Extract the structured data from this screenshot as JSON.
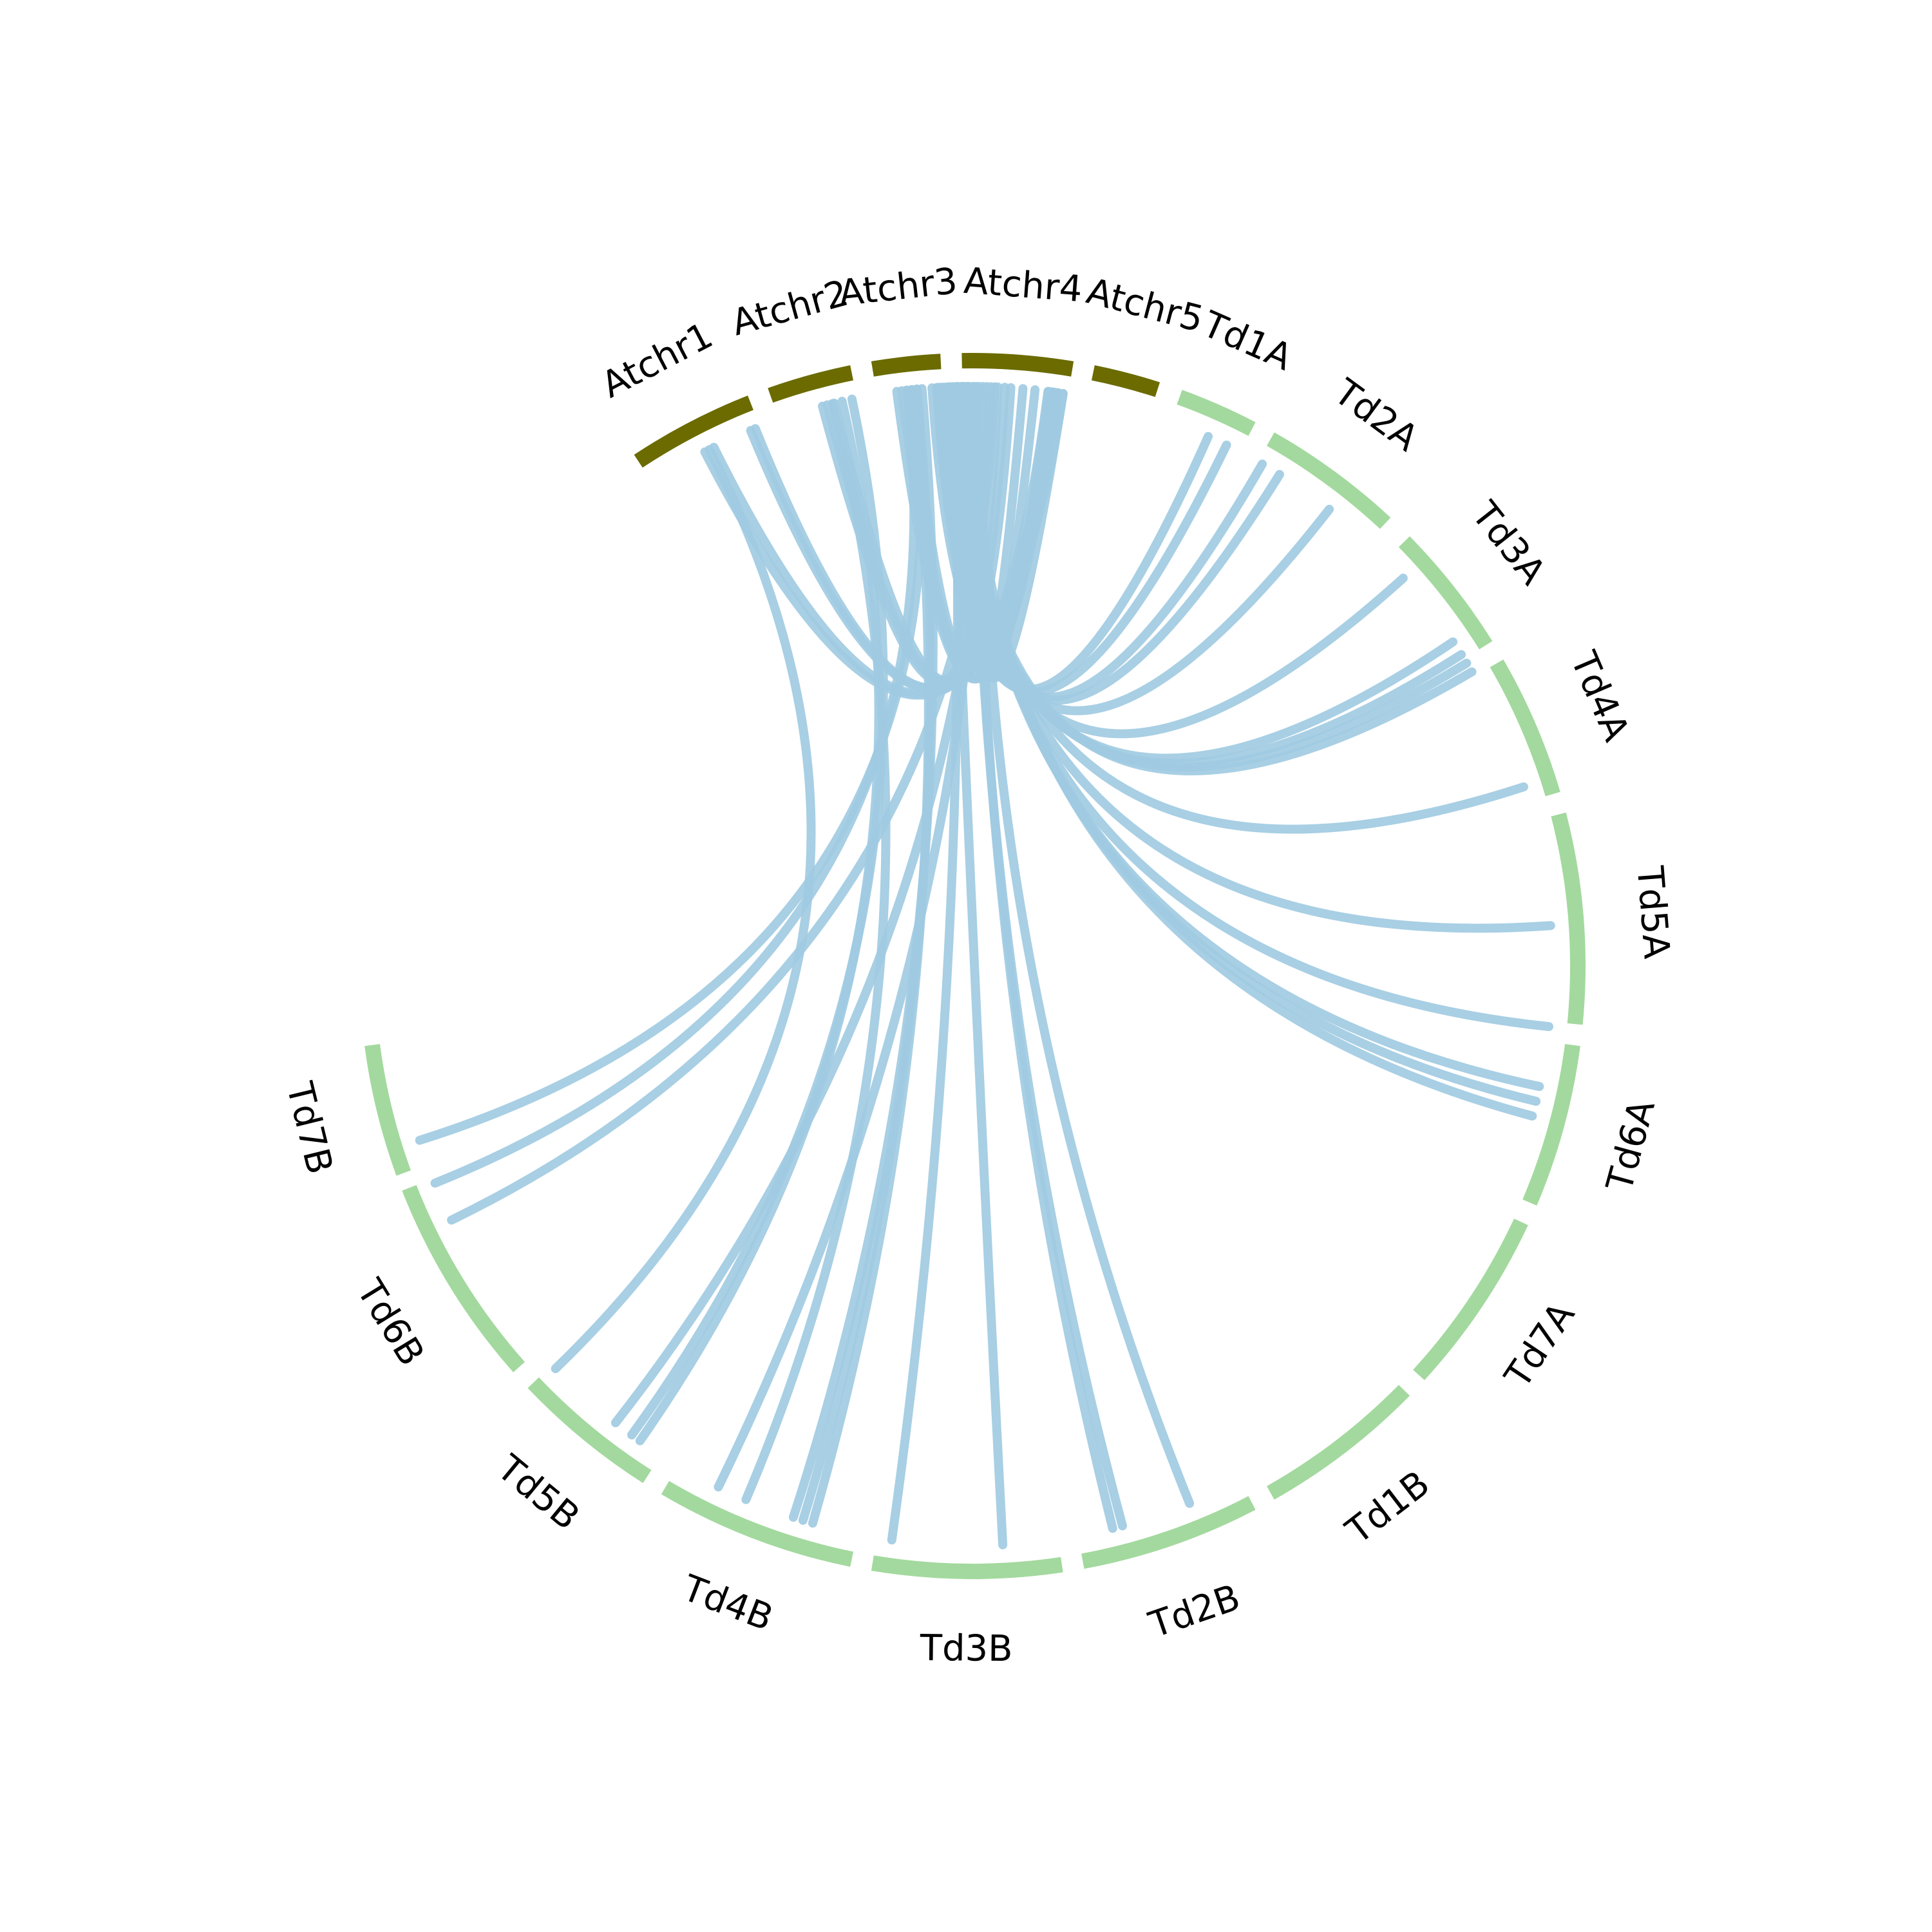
{
  "colors": {
    "arabidopsis": "#6b6b00",
    "durum": "#a3d99e",
    "link": "#9ecae1"
  },
  "segments": [
    {
      "label": "Atchr1",
      "group": "arabidopsis"
    },
    {
      "label": "Atchr2",
      "group": "arabidopsis"
    },
    {
      "label": "Atchr3",
      "group": "arabidopsis"
    },
    {
      "label": "Atchr4",
      "group": "arabidopsis"
    },
    {
      "label": "Atchr5",
      "group": "arabidopsis"
    },
    {
      "label": "Td1A",
      "group": "durum"
    },
    {
      "label": "Td2A",
      "group": "durum"
    },
    {
      "label": "Td3A",
      "group": "durum"
    },
    {
      "label": "Td4A",
      "group": "durum"
    },
    {
      "label": "Td5A",
      "group": "durum"
    },
    {
      "label": "Td6A",
      "group": "durum"
    },
    {
      "label": "Td7A",
      "group": "durum"
    },
    {
      "label": "Td1B",
      "group": "durum"
    },
    {
      "label": "Td2B",
      "group": "durum"
    },
    {
      "label": "Td3B",
      "group": "durum"
    },
    {
      "label": "Td4B",
      "group": "durum"
    },
    {
      "label": "Td5B",
      "group": "durum"
    },
    {
      "label": "Td6B",
      "group": "durum"
    },
    {
      "label": "Td7B",
      "group": "durum"
    }
  ]
}
